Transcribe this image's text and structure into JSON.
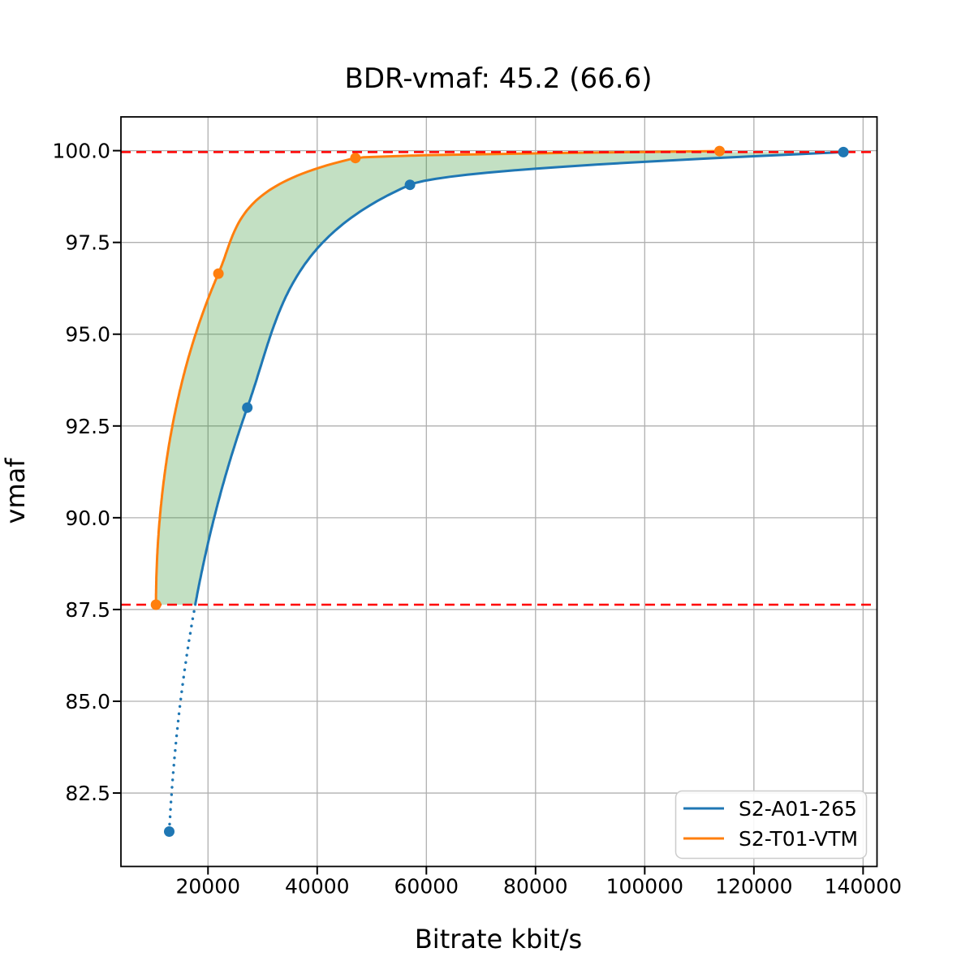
{
  "figure": {
    "background": "#ffffff",
    "plot_background": "#ffffff",
    "border_color": "#000000",
    "grid_color": "#b0b0b0",
    "text_color": "#000000"
  },
  "chart_data": {
    "type": "line",
    "title": "BDR-vmaf: 45.2 (66.6)",
    "xlabel": "Bitrate kbit/s",
    "ylabel": "vmaf",
    "xlim": [
      4050,
      142550
    ],
    "ylim": [
      80.5,
      100.92
    ],
    "grid": true,
    "x_ticks": [
      {
        "v": 20000,
        "label": "20000"
      },
      {
        "v": 40000,
        "label": "40000"
      },
      {
        "v": 60000,
        "label": "60000"
      },
      {
        "v": 80000,
        "label": "80000"
      },
      {
        "v": 100000,
        "label": "100000"
      },
      {
        "v": 120000,
        "label": "120000"
      },
      {
        "v": 140000,
        "label": "140000"
      }
    ],
    "y_ticks": [
      {
        "v": 82.5,
        "label": "82.5"
      },
      {
        "v": 85.0,
        "label": "85.0"
      },
      {
        "v": 87.5,
        "label": "87.5"
      },
      {
        "v": 90.0,
        "label": "90.0"
      },
      {
        "v": 92.5,
        "label": "92.5"
      },
      {
        "v": 95.0,
        "label": "95.0"
      },
      {
        "v": 97.5,
        "label": "97.5"
      },
      {
        "v": 100.0,
        "label": "100.0"
      }
    ],
    "series": [
      {
        "name": "S2-A01-265",
        "color": "#1f77b4",
        "marker": "circle",
        "points": [
          [
            12900,
            81.45
          ],
          [
            27200,
            93.0
          ],
          [
            57000,
            99.07
          ],
          [
            136400,
            99.96
          ]
        ],
        "dotted_below_vmaf": 87.63
      },
      {
        "name": "S2-T01-VTM",
        "color": "#ff7f0e",
        "marker": "circle",
        "points": [
          [
            10470,
            87.63
          ],
          [
            21900,
            96.65
          ],
          [
            47000,
            99.8
          ],
          [
            113700,
            99.99
          ]
        ]
      }
    ],
    "integration_limits": {
      "lower_vmaf": 87.63,
      "upper_vmaf": 99.96,
      "line_color": "#ff0000",
      "line_style": "dashed"
    },
    "shaded_region": {
      "between": [
        "S2-T01-VTM",
        "S2-A01-265"
      ],
      "color": "#228b22",
      "alpha": 0.27
    },
    "legend_position": "lower right"
  }
}
